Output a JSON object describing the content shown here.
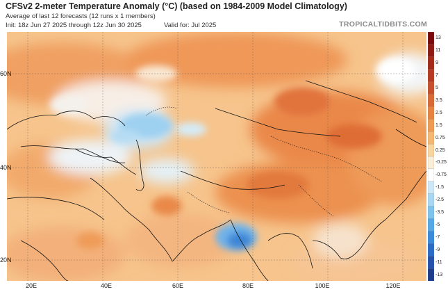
{
  "header": {
    "title": "CFSv2 2-meter Temperature Anomaly (°C) (based on 1984-2009 Model Climatology)",
    "subtitle": "Average of last 12 forecasts (12 runs x 1 members)",
    "init": "Init: 18z Jun 27 2025 through 12z Jun 30 2025",
    "valid": "Valid for: Jul 2025",
    "brand": "TROPICALTIDBITS.COM"
  },
  "map": {
    "lat_labels": [
      "60N",
      "40N",
      "20N"
    ],
    "lon_labels": [
      "20E",
      "40E",
      "60E",
      "80E",
      "100E",
      "120E"
    ]
  },
  "colorbar": {
    "labels": [
      "13",
      "11",
      "9",
      "7",
      "5",
      "3.5",
      "2.5",
      "1.5",
      "0.75",
      "0.25",
      "-0.25",
      "-0.75",
      "-1.5",
      "-2.5",
      "-3.5",
      "-5",
      "-7",
      "-9",
      "-11",
      "-13"
    ],
    "colors": [
      "#7a0a0a",
      "#8f1a12",
      "#a52a1a",
      "#b83a22",
      "#c8502c",
      "#d96a35",
      "#e7833f",
      "#ef9b52",
      "#f5b771",
      "#f9d49c",
      "#fbeed6",
      "#ffffff",
      "#cfe8f7",
      "#a8d7f3",
      "#7cc3ee",
      "#55a9e6",
      "#3a8bdc",
      "#2a6cc8",
      "#2452ad",
      "#1d3c8c"
    ]
  }
}
